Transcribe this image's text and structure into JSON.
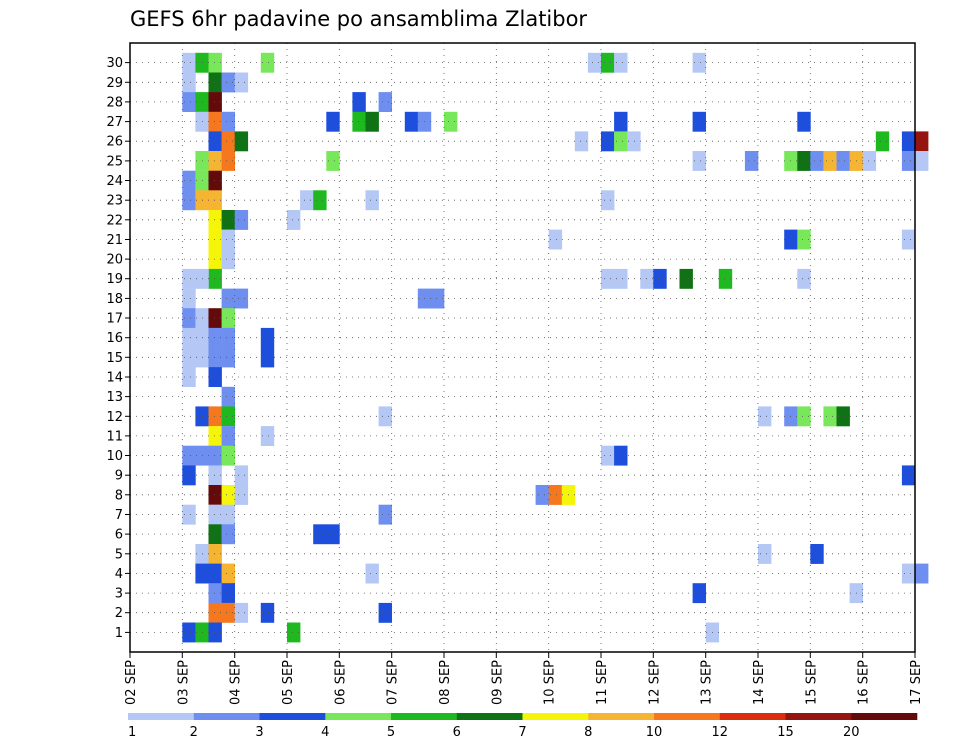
{
  "chart_data": {
    "type": "heatmap",
    "title": "GEFS 6hr padavine po ansamblima Zlatibor",
    "xlabel": "",
    "ylabel": "",
    "x_tick_labels": [
      "02 SEP",
      "03 SEP",
      "04 SEP",
      "05 SEP",
      "06 SEP",
      "07 SEP",
      "08 SEP",
      "09 SEP",
      "10 SEP",
      "11 SEP",
      "12 SEP",
      "13 SEP",
      "14 SEP",
      "15 SEP",
      "16 SEP",
      "17 SEP"
    ],
    "y_tick_labels": [
      "1",
      "2",
      "3",
      "4",
      "5",
      "6",
      "7",
      "8",
      "9",
      "10",
      "11",
      "12",
      "13",
      "14",
      "15",
      "16",
      "17",
      "18",
      "19",
      "20",
      "21",
      "22",
      "23",
      "24",
      "25",
      "26",
      "27",
      "28",
      "29",
      "30"
    ],
    "x_range_steps": [
      0,
      60
    ],
    "y_range": [
      0,
      30
    ],
    "grid": true,
    "legend_position": "bottom",
    "colorbar": {
      "colors": [
        "#b4c7f5",
        "#6e8ff0",
        "#1e4fdc",
        "#78e85a",
        "#1eb91e",
        "#0f7214",
        "#f5f50a",
        "#f5b432",
        "#f5781e",
        "#dc2d0f",
        "#96140f",
        "#640a0a"
      ],
      "labels": [
        "1",
        "2",
        "3",
        "4",
        "5",
        "6",
        "7",
        "8",
        "10",
        "12",
        "15",
        "20"
      ]
    },
    "cells": [
      [
        4,
        30,
        0
      ],
      [
        5,
        30,
        4
      ],
      [
        6,
        30,
        3
      ],
      [
        10,
        30,
        3
      ],
      [
        35,
        30,
        0
      ],
      [
        36,
        30,
        4
      ],
      [
        37,
        30,
        0
      ],
      [
        43,
        30,
        0
      ],
      [
        4,
        29,
        0
      ],
      [
        6,
        29,
        5
      ],
      [
        7,
        29,
        1
      ],
      [
        8,
        29,
        0
      ],
      [
        4,
        28,
        1
      ],
      [
        5,
        28,
        4
      ],
      [
        6,
        28,
        11
      ],
      [
        17,
        28,
        2
      ],
      [
        19,
        28,
        1
      ],
      [
        5,
        27,
        0
      ],
      [
        6,
        27,
        8
      ],
      [
        7,
        27,
        1
      ],
      [
        15,
        27,
        2
      ],
      [
        17,
        27,
        4
      ],
      [
        18,
        27,
        5
      ],
      [
        21,
        27,
        2
      ],
      [
        22,
        27,
        1
      ],
      [
        24,
        27,
        3
      ],
      [
        37,
        27,
        2
      ],
      [
        43,
        27,
        2
      ],
      [
        51,
        27,
        2
      ],
      [
        6,
        26,
        2
      ],
      [
        7,
        26,
        8
      ],
      [
        8,
        26,
        5
      ],
      [
        34,
        26,
        0
      ],
      [
        36,
        26,
        2
      ],
      [
        37,
        26,
        3
      ],
      [
        38,
        26,
        0
      ],
      [
        57,
        26,
        4
      ],
      [
        59,
        26,
        2
      ],
      [
        60,
        26,
        10
      ],
      [
        5,
        25,
        3
      ],
      [
        6,
        25,
        7
      ],
      [
        7,
        25,
        8
      ],
      [
        15,
        25,
        3
      ],
      [
        43,
        25,
        0
      ],
      [
        47,
        25,
        1
      ],
      [
        50,
        25,
        3
      ],
      [
        51,
        25,
        5
      ],
      [
        52,
        25,
        1
      ],
      [
        53,
        25,
        7
      ],
      [
        54,
        25,
        1
      ],
      [
        55,
        25,
        7
      ],
      [
        56,
        25,
        0
      ],
      [
        59,
        25,
        1
      ],
      [
        60,
        25,
        0
      ],
      [
        4,
        24,
        1
      ],
      [
        5,
        24,
        3
      ],
      [
        6,
        24,
        11
      ],
      [
        4,
        23,
        1
      ],
      [
        5,
        23,
        7
      ],
      [
        6,
        23,
        7
      ],
      [
        13,
        23,
        0
      ],
      [
        14,
        23,
        4
      ],
      [
        18,
        23,
        0
      ],
      [
        36,
        23,
        0
      ],
      [
        6,
        22,
        6
      ],
      [
        7,
        22,
        5
      ],
      [
        8,
        22,
        1
      ],
      [
        12,
        22,
        0
      ],
      [
        6,
        21,
        6
      ],
      [
        7,
        21,
        0
      ],
      [
        32,
        21,
        0
      ],
      [
        50,
        21,
        2
      ],
      [
        51,
        21,
        3
      ],
      [
        59,
        21,
        0
      ],
      [
        6,
        20,
        6
      ],
      [
        7,
        20,
        0
      ],
      [
        6,
        19,
        4
      ],
      [
        4,
        19,
        0
      ],
      [
        5,
        19,
        0
      ],
      [
        36,
        19,
        0
      ],
      [
        37,
        19,
        0
      ],
      [
        39,
        19,
        0
      ],
      [
        40,
        19,
        2
      ],
      [
        42,
        19,
        5
      ],
      [
        45,
        19,
        4
      ],
      [
        51,
        19,
        0
      ],
      [
        4,
        18,
        0
      ],
      [
        7,
        18,
        1
      ],
      [
        8,
        18,
        1
      ],
      [
        22,
        18,
        1
      ],
      [
        23,
        18,
        1
      ],
      [
        4,
        17,
        1
      ],
      [
        5,
        17,
        0
      ],
      [
        6,
        17,
        11
      ],
      [
        7,
        17,
        3
      ],
      [
        4,
        16,
        0
      ],
      [
        5,
        16,
        0
      ],
      [
        6,
        16,
        1
      ],
      [
        7,
        16,
        1
      ],
      [
        10,
        16,
        2
      ],
      [
        4,
        15,
        0
      ],
      [
        5,
        15,
        0
      ],
      [
        6,
        15,
        1
      ],
      [
        7,
        15,
        1
      ],
      [
        10,
        15,
        2
      ],
      [
        4,
        14,
        0
      ],
      [
        6,
        14,
        2
      ],
      [
        7,
        13,
        1
      ],
      [
        5,
        12,
        2
      ],
      [
        6,
        12,
        8
      ],
      [
        7,
        12,
        4
      ],
      [
        19,
        12,
        0
      ],
      [
        48,
        12,
        0
      ],
      [
        50,
        12,
        1
      ],
      [
        51,
        12,
        3
      ],
      [
        53,
        12,
        3
      ],
      [
        54,
        12,
        5
      ],
      [
        6,
        11,
        6
      ],
      [
        7,
        11,
        1
      ],
      [
        10,
        11,
        0
      ],
      [
        4,
        10,
        1
      ],
      [
        5,
        10,
        1
      ],
      [
        6,
        10,
        1
      ],
      [
        7,
        10,
        3
      ],
      [
        36,
        10,
        0
      ],
      [
        37,
        10,
        2
      ],
      [
        4,
        9,
        2
      ],
      [
        6,
        9,
        0
      ],
      [
        8,
        9,
        0
      ],
      [
        59,
        9,
        2
      ],
      [
        6,
        8,
        11
      ],
      [
        7,
        8,
        6
      ],
      [
        8,
        8,
        0
      ],
      [
        31,
        8,
        1
      ],
      [
        32,
        8,
        8
      ],
      [
        33,
        8,
        6
      ],
      [
        4,
        7,
        0
      ],
      [
        6,
        7,
        0
      ],
      [
        7,
        7,
        0
      ],
      [
        19,
        7,
        1
      ],
      [
        6,
        6,
        5
      ],
      [
        7,
        6,
        1
      ],
      [
        14,
        6,
        2
      ],
      [
        15,
        6,
        2
      ],
      [
        5,
        5,
        0
      ],
      [
        6,
        5,
        7
      ],
      [
        48,
        5,
        0
      ],
      [
        52,
        5,
        2
      ],
      [
        5,
        4,
        2
      ],
      [
        6,
        4,
        2
      ],
      [
        7,
        4,
        7
      ],
      [
        18,
        4,
        0
      ],
      [
        59,
        4,
        0
      ],
      [
        60,
        4,
        1
      ],
      [
        6,
        3,
        1
      ],
      [
        7,
        3,
        2
      ],
      [
        43,
        3,
        2
      ],
      [
        55,
        3,
        0
      ],
      [
        6,
        2,
        8
      ],
      [
        7,
        2,
        8
      ],
      [
        8,
        2,
        0
      ],
      [
        10,
        2,
        2
      ],
      [
        19,
        2,
        2
      ],
      [
        4,
        1,
        2
      ],
      [
        5,
        1,
        4
      ],
      [
        6,
        1,
        2
      ],
      [
        12,
        1,
        4
      ],
      [
        44,
        1,
        0
      ]
    ]
  }
}
